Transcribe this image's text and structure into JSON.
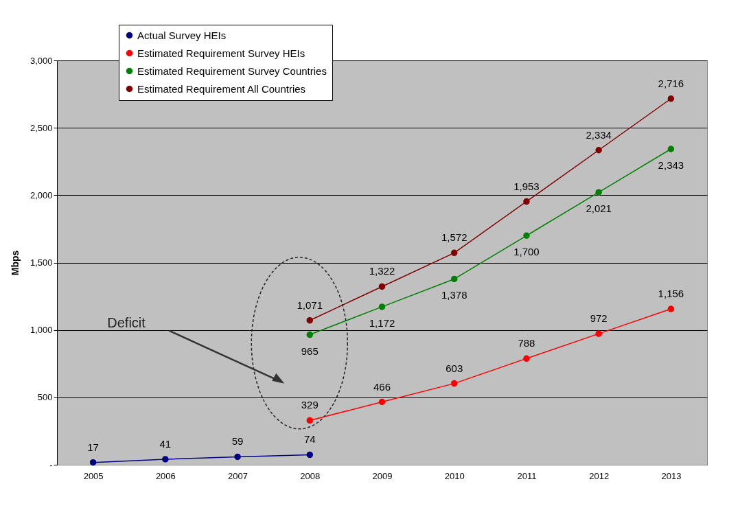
{
  "chart_data": {
    "type": "line",
    "ylabel": "Mbps",
    "categories": [
      "2005",
      "2006",
      "2007",
      "2008",
      "2009",
      "2010",
      "2011",
      "2012",
      "2013"
    ],
    "series": [
      {
        "name": "Actual Survey HEIs",
        "color": "#000080",
        "values": [
          17,
          41,
          59,
          74,
          null,
          null,
          null,
          null,
          null
        ],
        "value_labels": [
          "17",
          "41",
          "59",
          "74",
          null,
          null,
          null,
          null,
          null
        ]
      },
      {
        "name": "Estimated Requirement Survey HEIs",
        "color": "#ff0000",
        "values": [
          null,
          null,
          null,
          329,
          466,
          603,
          788,
          972,
          1156
        ],
        "value_labels": [
          null,
          null,
          null,
          "329",
          "466",
          "603",
          "788",
          "972",
          "1,156"
        ]
      },
      {
        "name": "Estimated Requirement Survey Countries",
        "color": "#008000",
        "values": [
          null,
          null,
          null,
          965,
          1172,
          1378,
          1700,
          2021,
          2343
        ],
        "value_labels": [
          null,
          null,
          null,
          "965",
          "1,172",
          "1,378",
          "1,700",
          "2,021",
          "2,343"
        ]
      },
      {
        "name": "Estimated Requirement All Countries",
        "color": "#800000",
        "values": [
          null,
          null,
          null,
          1071,
          1322,
          1572,
          1953,
          2334,
          2716
        ],
        "value_labels": [
          null,
          null,
          null,
          "1,071",
          "1,322",
          "1,572",
          "1,953",
          "2,334",
          "2,716"
        ]
      }
    ],
    "ylim": [
      0,
      3000
    ],
    "yticks": [
      {
        "value": 0,
        "label": "-"
      },
      500,
      {
        "value": 1000,
        "label": "1,000"
      },
      {
        "value": 1500,
        "label": "1,500"
      },
      {
        "value": 2000,
        "label": "2,000"
      },
      {
        "value": 2500,
        "label": "2,500"
      },
      {
        "value": 3000,
        "label": "3,000"
      }
    ],
    "grid": "y",
    "legend": "top left",
    "marker": "circle",
    "line_style": "solid",
    "annotations": [
      "Deficit"
    ]
  }
}
